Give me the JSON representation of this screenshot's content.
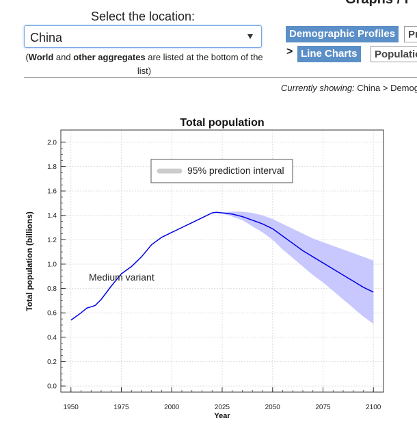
{
  "location_select": {
    "label": "Select the location:",
    "value": "China",
    "note_bold_1": "World",
    "note_mid": " and ",
    "note_bold_2": "other aggregates",
    "note_end": " are listed at the bottom of the list)",
    "note_open": "("
  },
  "header_partial_title": "Graphs / I",
  "nav": {
    "demographic_profiles": "Demographic Profiles",
    "partial_btn": "Pr",
    "separator": ">",
    "line_charts": "Line Charts",
    "population_partial": "Populatio"
  },
  "currently_showing": {
    "label": "Currently showing:",
    "value": "China > Demogr"
  },
  "colors": {
    "median_line": "#0000e6",
    "interval_fill": "#c8c8ff",
    "legend_swatch": "#cccccc",
    "nav_blue": "#5b8fc7"
  },
  "chart_data": {
    "type": "line",
    "title": "Total population",
    "xlabel": "Year",
    "ylabel": "Total population (billions)",
    "xlim": [
      1945,
      2105
    ],
    "ylim": [
      -0.05,
      2.1
    ],
    "x_ticks": [
      1950,
      1975,
      2000,
      2025,
      2050,
      2075,
      2100
    ],
    "y_ticks": [
      0.0,
      0.2,
      0.4,
      0.6,
      0.8,
      1.0,
      1.2,
      1.4,
      1.6,
      1.8,
      2.0
    ],
    "x_tick_labels": [
      "1950",
      "1975",
      "2000",
      "2025",
      "2050",
      "2075",
      "2100"
    ],
    "y_tick_labels": [
      "0.0",
      "0.2",
      "0.4",
      "0.6",
      "0.8",
      "1.0",
      "1.2",
      "1.4",
      "1.6",
      "1.8",
      "2.0"
    ],
    "grid": true,
    "legend": {
      "label": "95% prediction interval",
      "position": "top-center"
    },
    "annotation": {
      "text": "Medium variant"
    },
    "series": [
      {
        "name": "Medium variant",
        "x": [
          1950,
          1955,
          1958,
          1960,
          1962,
          1965,
          1970,
          1975,
          1980,
          1985,
          1990,
          1995,
          2000,
          2005,
          2010,
          2015,
          2020,
          2022,
          2025,
          2030,
          2035,
          2040,
          2045,
          2050,
          2055,
          2060,
          2065,
          2070,
          2075,
          2080,
          2085,
          2090,
          2095,
          2100
        ],
        "values": [
          0.54,
          0.6,
          0.64,
          0.65,
          0.66,
          0.71,
          0.82,
          0.92,
          0.98,
          1.06,
          1.16,
          1.22,
          1.26,
          1.3,
          1.34,
          1.38,
          1.42,
          1.425,
          1.42,
          1.41,
          1.39,
          1.36,
          1.33,
          1.29,
          1.23,
          1.17,
          1.11,
          1.06,
          1.01,
          0.96,
          0.91,
          0.86,
          0.81,
          0.77
        ]
      }
    ],
    "interval": {
      "name": "95% prediction interval",
      "x": [
        2022,
        2025,
        2030,
        2035,
        2040,
        2045,
        2050,
        2055,
        2060,
        2065,
        2070,
        2075,
        2080,
        2085,
        2090,
        2095,
        2100
      ],
      "lower": [
        1.425,
        1.415,
        1.39,
        1.36,
        1.31,
        1.26,
        1.2,
        1.12,
        1.05,
        0.98,
        0.91,
        0.85,
        0.78,
        0.71,
        0.64,
        0.57,
        0.51
      ],
      "upper": [
        1.425,
        1.425,
        1.43,
        1.43,
        1.42,
        1.4,
        1.37,
        1.33,
        1.29,
        1.25,
        1.21,
        1.18,
        1.15,
        1.12,
        1.09,
        1.06,
        1.03
      ]
    }
  }
}
